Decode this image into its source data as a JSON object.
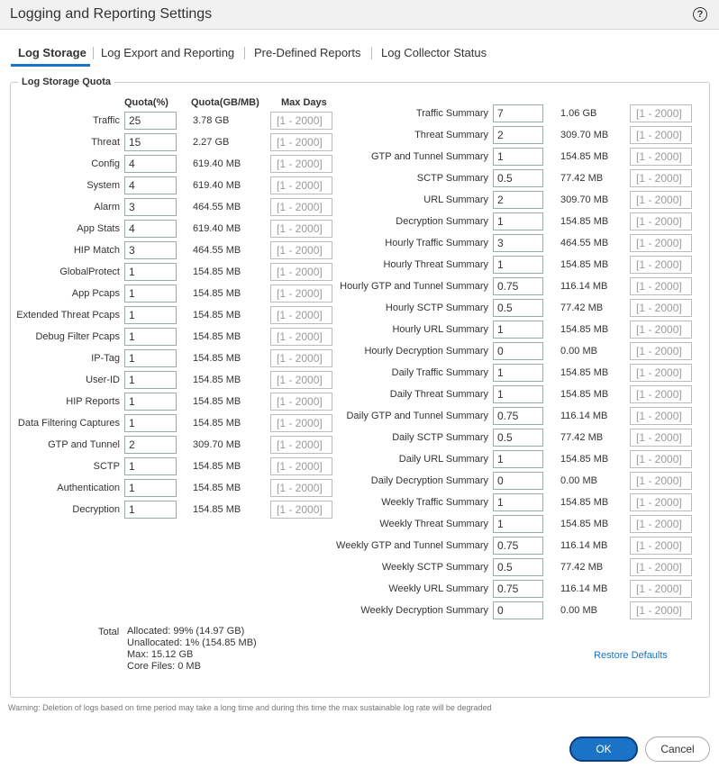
{
  "header": {
    "title": "Logging and Reporting Settings",
    "help": "?"
  },
  "tabs": [
    "Log Storage",
    "Log Export and Reporting",
    "Pre-Defined Reports",
    "Log Collector Status"
  ],
  "section": {
    "title": "Log Storage Quota",
    "columns": [
      "Quota(%)",
      "Quota(GB/MB)",
      "Max Days"
    ]
  },
  "left_rows": [
    {
      "label": "Traffic",
      "quota": 25,
      "size": "3.78 GB",
      "max_days": "[1 - 2000]"
    },
    {
      "label": "Threat",
      "quota": 15,
      "size": "2.27 GB",
      "max_days": "[1 - 2000]"
    },
    {
      "label": "Config",
      "quota": 4,
      "size": "619.40 MB",
      "max_days": "[1 - 2000]"
    },
    {
      "label": "System",
      "quota": 4,
      "size": "619.40 MB",
      "max_days": "[1 - 2000]"
    },
    {
      "label": "Alarm",
      "quota": 3,
      "size": "464.55 MB",
      "max_days": "[1 - 2000]"
    },
    {
      "label": "App Stats",
      "quota": 4,
      "size": "619.40 MB",
      "max_days": "[1 - 2000]"
    },
    {
      "label": "HIP Match",
      "quota": 3,
      "size": "464.55 MB",
      "max_days": "[1 - 2000]"
    },
    {
      "label": "GlobalProtect",
      "quota": 1,
      "size": "154.85 MB",
      "max_days": "[1 - 2000]"
    },
    {
      "label": "App Pcaps",
      "quota": 1,
      "size": "154.85 MB",
      "max_days": "[1 - 2000]"
    },
    {
      "label": "Extended Threat Pcaps",
      "quota": 1,
      "size": "154.85 MB",
      "max_days": "[1 - 2000]"
    },
    {
      "label": "Debug Filter Pcaps",
      "quota": 1,
      "size": "154.85 MB",
      "max_days": "[1 - 2000]"
    },
    {
      "label": "IP-Tag",
      "quota": 1,
      "size": "154.85 MB",
      "max_days": "[1 - 2000]"
    },
    {
      "label": "User-ID",
      "quota": 1,
      "size": "154.85 MB",
      "max_days": "[1 - 2000]"
    },
    {
      "label": "HIP Reports",
      "quota": 1,
      "size": "154.85 MB",
      "max_days": "[1 - 2000]"
    },
    {
      "label": "Data Filtering Captures",
      "quota": 1,
      "size": "154.85 MB",
      "max_days": "[1 - 2000]"
    },
    {
      "label": "GTP and Tunnel",
      "quota": 2,
      "size": "309.70 MB",
      "max_days": "[1 - 2000]"
    },
    {
      "label": "SCTP",
      "quota": 1,
      "size": "154.85 MB",
      "max_days": "[1 - 2000]"
    },
    {
      "label": "Authentication",
      "quota": 1,
      "size": "154.85 MB",
      "max_days": "[1 - 2000]"
    },
    {
      "label": "Decryption",
      "quota": 1,
      "size": "154.85 MB",
      "max_days": "[1 - 2000]"
    }
  ],
  "right_rows": [
    {
      "label": "Traffic Summary",
      "quota": 7,
      "size": "1.06 GB",
      "max_days": "[1 - 2000]"
    },
    {
      "label": "Threat Summary",
      "quota": 2,
      "size": "309.70 MB",
      "max_days": "[1 - 2000]"
    },
    {
      "label": "GTP and Tunnel Summary",
      "quota": 1,
      "size": "154.85 MB",
      "max_days": "[1 - 2000]"
    },
    {
      "label": "SCTP Summary",
      "quota": 0.5,
      "size": "77.42 MB",
      "max_days": "[1 - 2000]"
    },
    {
      "label": "URL Summary",
      "quota": 2,
      "size": "309.70 MB",
      "max_days": "[1 - 2000]"
    },
    {
      "label": "Decryption Summary",
      "quota": 1,
      "size": "154.85 MB",
      "max_days": "[1 - 2000]"
    },
    {
      "label": "Hourly Traffic Summary",
      "quota": 3,
      "size": "464.55 MB",
      "max_days": "[1 - 2000]"
    },
    {
      "label": "Hourly Threat Summary",
      "quota": 1,
      "size": "154.85 MB",
      "max_days": "[1 - 2000]"
    },
    {
      "label": "Hourly GTP and Tunnel Summary",
      "quota": 0.75,
      "size": "116.14 MB",
      "max_days": "[1 - 2000]"
    },
    {
      "label": "Hourly SCTP Summary",
      "quota": 0.5,
      "size": "77.42 MB",
      "max_days": "[1 - 2000]"
    },
    {
      "label": "Hourly URL Summary",
      "quota": 1,
      "size": "154.85 MB",
      "max_days": "[1 - 2000]"
    },
    {
      "label": "Hourly Decryption Summary",
      "quota": 0,
      "size": "0.00 MB",
      "max_days": "[1 - 2000]"
    },
    {
      "label": "Daily Traffic Summary",
      "quota": 1,
      "size": "154.85 MB",
      "max_days": "[1 - 2000]"
    },
    {
      "label": "Daily Threat Summary",
      "quota": 1,
      "size": "154.85 MB",
      "max_days": "[1 - 2000]"
    },
    {
      "label": "Daily GTP and Tunnel Summary",
      "quota": 0.75,
      "size": "116.14 MB",
      "max_days": "[1 - 2000]"
    },
    {
      "label": "Daily SCTP Summary",
      "quota": 0.5,
      "size": "77.42 MB",
      "max_days": "[1 - 2000]"
    },
    {
      "label": "Daily URL Summary",
      "quota": 1,
      "size": "154.85 MB",
      "max_days": "[1 - 2000]"
    },
    {
      "label": "Daily Decryption Summary",
      "quota": 0,
      "size": "0.00 MB",
      "max_days": "[1 - 2000]"
    },
    {
      "label": "Weekly Traffic Summary",
      "quota": 1,
      "size": "154.85 MB",
      "max_days": "[1 - 2000]"
    },
    {
      "label": "Weekly Threat Summary",
      "quota": 1,
      "size": "154.85 MB",
      "max_days": "[1 - 2000]"
    },
    {
      "label": "Weekly GTP and Tunnel Summary",
      "quota": 0.75,
      "size": "116.14 MB",
      "max_days": "[1 - 2000]"
    },
    {
      "label": "Weekly SCTP Summary",
      "quota": 0.5,
      "size": "77.42 MB",
      "max_days": "[1 - 2000]"
    },
    {
      "label": "Weekly URL Summary",
      "quota": 0.75,
      "size": "116.14 MB",
      "max_days": "[1 - 2000]"
    },
    {
      "label": "Weekly Decryption Summary",
      "quota": 0,
      "size": "0.00 MB",
      "max_days": "[1 - 2000]"
    }
  ],
  "total": {
    "label": "Total",
    "lines": [
      "Allocated: 99% (14.97 GB)",
      "Unallocated: 1% (154.85 MB)",
      "Max: 15.12 GB",
      "Core Files: 0 MB"
    ]
  },
  "restore": "Restore Defaults",
  "warning": "Warning: Deletion of logs based on time period may take a long time and during this time the max sustainable log rate will be degraded",
  "buttons": {
    "ok": "OK",
    "cancel": "Cancel"
  }
}
